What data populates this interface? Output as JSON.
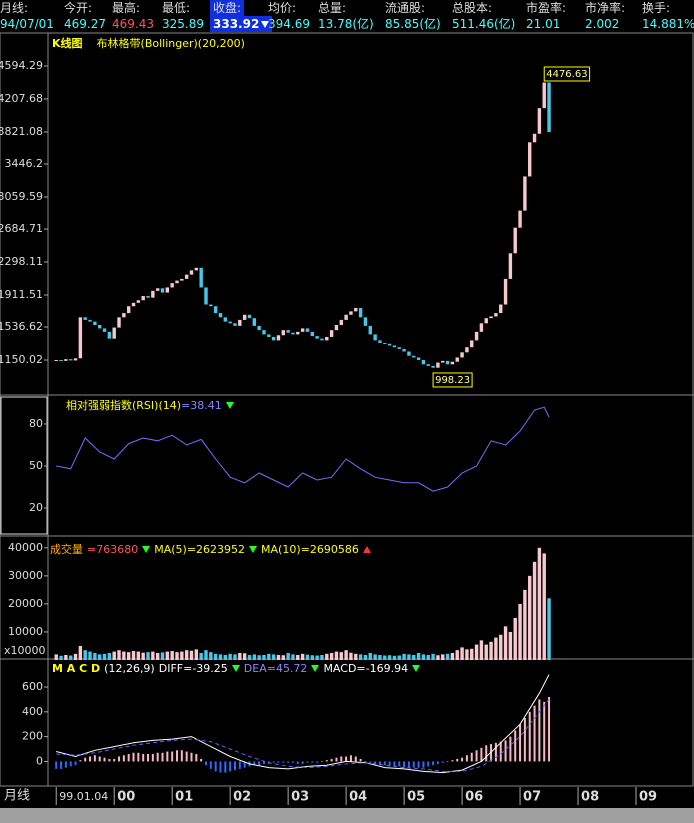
{
  "header": {
    "labels": [
      "月线:",
      "今开:",
      "最高:",
      "最低:",
      "收盘:",
      "均价:",
      "总量:",
      "流通股:",
      "总股本:",
      "市盈率:",
      "市净率:",
      "换手:"
    ],
    "values": [
      "94/07/01",
      "469.27",
      "469.43",
      "325.89",
      "333.92",
      "394.69",
      "13.78(亿)",
      "85.85(亿)",
      "511.46(亿)",
      "21.01",
      "2.002",
      "14.881%"
    ]
  },
  "time_axis": {
    "label": "月线",
    "xlim": [
      -1.7,
      132
    ],
    "xticks": [
      {
        "value": 0,
        "label": "99.01.04"
      },
      {
        "value": 12,
        "label": "00"
      },
      {
        "value": 24,
        "label": "01"
      },
      {
        "value": 36,
        "label": "02"
      },
      {
        "value": 48,
        "label": "03"
      },
      {
        "value": 60,
        "label": "04"
      },
      {
        "value": 72,
        "label": "05"
      },
      {
        "value": 84,
        "label": "06"
      },
      {
        "value": 96,
        "label": "07"
      },
      {
        "value": 108,
        "label": "08"
      },
      {
        "value": 120,
        "label": "09"
      }
    ]
  },
  "chart_data": [
    {
      "type": "candlestick",
      "title": "K线图",
      "subtitle": "布林格带(Bollinger)(20,200)",
      "up_color": "#f8c8d0",
      "down_color": "#48c8e8",
      "opens": [
        1150,
        1150,
        1140,
        1160,
        1145,
        1170,
        1650,
        1620,
        1600,
        1560,
        1520,
        1480,
        1400,
        1530,
        1650,
        1700,
        1780,
        1820,
        1850,
        1900,
        1880,
        1960,
        1990,
        1940,
        2000,
        2050,
        2080,
        2100,
        2150,
        2200,
        2230,
        2000,
        1800,
        1780,
        1700,
        1650,
        1600,
        1580,
        1550,
        1620,
        1680,
        1640,
        1550,
        1500,
        1450,
        1420,
        1380,
        1440,
        1500,
        1470,
        1450,
        1480,
        1520,
        1480,
        1430,
        1400,
        1380,
        1420,
        1500,
        1560,
        1620,
        1680,
        1720,
        1760,
        1650,
        1550,
        1450,
        1380,
        1350,
        1340,
        1320,
        1300,
        1280,
        1250,
        1200,
        1180,
        1150,
        1100,
        1080,
        1060,
        1120,
        1140,
        1100,
        1130,
        1180,
        1240,
        1300,
        1380,
        1480,
        1580,
        1640,
        1660,
        1700,
        1800,
        2100,
        2400,
        2700,
        2900,
        3300,
        3700,
        3800,
        4100,
        4400
      ],
      "closes": [
        1150,
        1140,
        1160,
        1145,
        1170,
        1650,
        1620,
        1600,
        1560,
        1520,
        1480,
        1400,
        1530,
        1650,
        1700,
        1780,
        1820,
        1850,
        1900,
        1880,
        1960,
        1990,
        1940,
        2000,
        2050,
        2080,
        2100,
        2150,
        2200,
        2230,
        2000,
        1800,
        1780,
        1700,
        1650,
        1600,
        1580,
        1550,
        1620,
        1680,
        1640,
        1550,
        1500,
        1450,
        1420,
        1380,
        1440,
        1500,
        1470,
        1450,
        1480,
        1520,
        1480,
        1430,
        1400,
        1380,
        1420,
        1500,
        1560,
        1620,
        1680,
        1720,
        1760,
        1650,
        1550,
        1450,
        1380,
        1350,
        1340,
        1320,
        1300,
        1280,
        1250,
        1200,
        1180,
        1150,
        1100,
        1080,
        1060,
        1120,
        1140,
        1100,
        1130,
        1180,
        1240,
        1300,
        1380,
        1480,
        1580,
        1640,
        1660,
        1700,
        1800,
        2100,
        2400,
        2700,
        2900,
        3300,
        3700,
        3800,
        4100,
        4400,
        3820
      ],
      "ylim": [
        752,
        4945
      ],
      "yticks": [
        1150.02,
        1536.62,
        1911.51,
        2298.11,
        2684.71,
        3059.59,
        3446.2,
        3821.08,
        4207.68,
        4594.29
      ],
      "annotations": [
        {
          "value": 4476.63,
          "x": 101
        },
        {
          "value": 998.23,
          "x": 78
        }
      ]
    },
    {
      "type": "line",
      "title": "相对强弱指数(RSI)(14)",
      "readout": "=38.41",
      "color": "#7070ff",
      "x": [
        0,
        3,
        6,
        9,
        12,
        15,
        18,
        21,
        24,
        27,
        30,
        33,
        36,
        39,
        42,
        45,
        48,
        51,
        54,
        57,
        60,
        63,
        66,
        69,
        72,
        75,
        78,
        81,
        84,
        87,
        90,
        93,
        96,
        99,
        101,
        102
      ],
      "values": [
        50,
        48,
        70,
        60,
        55,
        66,
        70,
        68,
        72,
        65,
        69,
        55,
        42,
        38,
        45,
        40,
        35,
        45,
        40,
        42,
        55,
        48,
        42,
        40,
        38,
        38,
        32,
        35,
        45,
        50,
        68,
        65,
        75,
        90,
        92,
        85
      ],
      "ylim": [
        0,
        100
      ],
      "yticks": [
        20,
        50,
        80
      ]
    },
    {
      "type": "bar",
      "title": "成交量",
      "readouts": [
        "=763680",
        "MA(5)=2623952",
        "MA(10)=2690586"
      ],
      "unit_label": "x10000",
      "values": [
        2000,
        1500,
        1800,
        1600,
        2200,
        5000,
        3500,
        3000,
        2500,
        2000,
        2200,
        2500,
        3000,
        3500,
        3000,
        2800,
        3200,
        3000,
        2600,
        2800,
        3000,
        2500,
        2700,
        3000,
        3200,
        2800,
        3000,
        3500,
        3300,
        3800,
        2500,
        3500,
        2800,
        2200,
        2000,
        1800,
        2200,
        2000,
        2500,
        2400,
        1800,
        2000,
        1700,
        1800,
        2200,
        2000,
        1800,
        1700,
        2500,
        2000,
        1800,
        2200,
        1900,
        1700,
        1600,
        1800,
        2200,
        2500,
        3000,
        2800,
        3500,
        2600,
        2200,
        2000,
        1800,
        2500,
        2000,
        1800,
        1600,
        1700,
        1500,
        1600,
        2200,
        2000,
        1800,
        2500,
        2000,
        1800,
        2200,
        1700,
        2000,
        2200,
        2500,
        3500,
        4500,
        3800,
        4000,
        5500,
        7000,
        5500,
        6500,
        8000,
        9000,
        12000,
        10000,
        15000,
        20000,
        25000,
        30000,
        35000,
        40000,
        38000,
        22000
      ],
      "ylim": [
        0,
        43500
      ],
      "yticks": [
        10000,
        20000,
        30000,
        40000
      ]
    },
    {
      "type": "macd",
      "title": "M A C D",
      "params": "(12,26,9)",
      "readout": "MACD=-169.94",
      "pos_color": "#f8b8c0",
      "neg_color": "#2a6cff",
      "histogram": [
        -60,
        -60,
        -50,
        -40,
        -30,
        10,
        30,
        40,
        50,
        40,
        30,
        20,
        20,
        40,
        50,
        60,
        70,
        70,
        60,
        60,
        60,
        70,
        70,
        80,
        80,
        90,
        90,
        80,
        70,
        60,
        20,
        -30,
        -60,
        -80,
        -90,
        -90,
        -80,
        -70,
        -60,
        -50,
        -40,
        -30,
        -30,
        -20,
        -20,
        -10,
        -10,
        -10,
        -10,
        -10,
        -20,
        -20,
        -10,
        -10,
        -10,
        0,
        10,
        20,
        30,
        40,
        40,
        50,
        40,
        20,
        0,
        -10,
        -20,
        -30,
        -30,
        -40,
        -40,
        -40,
        -50,
        -50,
        -50,
        -50,
        -50,
        -40,
        -30,
        -20,
        -10,
        0,
        10,
        20,
        30,
        50,
        70,
        90,
        110,
        130,
        140,
        150,
        160,
        170,
        200,
        250,
        300,
        350,
        400,
        450,
        500,
        480,
        520
      ],
      "series": [
        {
          "readout": "DIFF=-39.25",
          "color": "#ffffff",
          "x": [
            0,
            4,
            8,
            12,
            16,
            20,
            24,
            28,
            32,
            36,
            40,
            44,
            48,
            52,
            56,
            60,
            64,
            68,
            72,
            76,
            80,
            84,
            88,
            92,
            96,
            100,
            102
          ],
          "values": [
            80,
            40,
            90,
            120,
            150,
            170,
            180,
            200,
            120,
            40,
            -20,
            -50,
            -60,
            -40,
            -30,
            0,
            -10,
            -50,
            -60,
            -80,
            -90,
            -70,
            0,
            150,
            300,
            550,
            700
          ]
        },
        {
          "readout": "DEA=45.72",
          "color": "#6060ff",
          "x": [
            0,
            4,
            8,
            12,
            16,
            20,
            24,
            28,
            32,
            36,
            40,
            44,
            48,
            52,
            56,
            60,
            64,
            68,
            72,
            76,
            80,
            84,
            88,
            92,
            96,
            100,
            102
          ],
          "values": [
            60,
            50,
            70,
            100,
            130,
            150,
            170,
            180,
            160,
            100,
            40,
            -10,
            -40,
            -50,
            -40,
            -20,
            -10,
            -30,
            -50,
            -60,
            -80,
            -80,
            -40,
            60,
            200,
            400,
            500
          ]
        }
      ],
      "ylim": [
        -190,
        810
      ],
      "yticks": [
        0,
        200,
        400,
        600
      ]
    }
  ]
}
